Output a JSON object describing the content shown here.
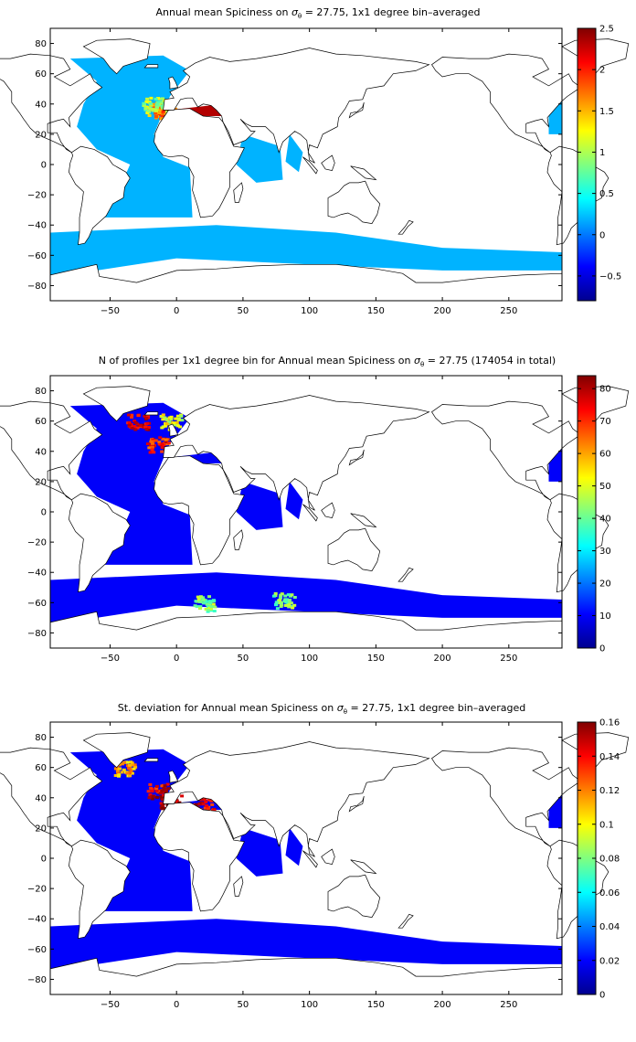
{
  "figure": {
    "panels": [
      {
        "id": "mean",
        "title_prefix": "Annual mean Spiciness on ",
        "title_suffix": " = 27.75, 1x1 degree bin–averaged",
        "xticks": [
          "−50",
          "0",
          "50",
          "100",
          "150",
          "200",
          "250"
        ],
        "yticks": [
          "80",
          "60",
          "40",
          "20",
          "0",
          "−20",
          "−40",
          "−60",
          "−80"
        ],
        "colorbar_ticks": [
          "2.5",
          "2",
          "1.5",
          "1",
          "0.5",
          "0",
          "−0.5"
        ]
      },
      {
        "id": "count",
        "title_prefix": "N of profiles per 1x1 degree bin for Annual mean Spiciness on ",
        "title_suffix": " = 27.75 (174054 in total)",
        "xticks": [
          "−50",
          "0",
          "50",
          "100",
          "150",
          "200",
          "250"
        ],
        "yticks": [
          "80",
          "60",
          "40",
          "20",
          "0",
          "−20",
          "−40",
          "−60",
          "−80"
        ],
        "colorbar_ticks": [
          "80",
          "70",
          "60",
          "50",
          "40",
          "30",
          "20",
          "10",
          "0"
        ]
      },
      {
        "id": "stdev",
        "title_prefix": "St. deviation for Annual mean Spiciness on ",
        "title_suffix": " = 27.75, 1x1 degree bin–averaged",
        "xticks": [
          "−50",
          "0",
          "50",
          "100",
          "150",
          "200",
          "250"
        ],
        "yticks": [
          "80",
          "60",
          "40",
          "20",
          "0",
          "−20",
          "−40",
          "−60",
          "−80"
        ],
        "colorbar_ticks": [
          "0.16",
          "0.14",
          "0.12",
          "0.1",
          "0.08",
          "0.06",
          "0.04",
          "0.02",
          "0"
        ]
      }
    ],
    "colormap": "jet"
  },
  "chart_data": [
    {
      "type": "heatmap",
      "title": "Annual mean Spiciness on σθ = 27.75, 1x1 degree bin–averaged",
      "xlim": [
        -95,
        290
      ],
      "ylim": [
        -90,
        90
      ],
      "xticks": [
        -50,
        0,
        50,
        100,
        150,
        200,
        250
      ],
      "yticks": [
        -80,
        -60,
        -40,
        -20,
        0,
        20,
        40,
        60,
        80
      ],
      "color_range": [
        -0.8,
        2.5
      ],
      "colorbar_ticks": [
        -0.5,
        0,
        0.5,
        1,
        1.5,
        2,
        2.5
      ]
    },
    {
      "type": "heatmap",
      "title": "N of profiles per 1x1 degree bin for Annual mean Spiciness on σθ = 27.75 (174054 in total)",
      "xlim": [
        -95,
        290
      ],
      "ylim": [
        -90,
        90
      ],
      "xticks": [
        -50,
        0,
        50,
        100,
        150,
        200,
        250
      ],
      "yticks": [
        -80,
        -60,
        -40,
        -20,
        0,
        20,
        40,
        60,
        80
      ],
      "color_range": [
        0,
        84
      ],
      "colorbar_ticks": [
        0,
        10,
        20,
        30,
        40,
        50,
        60,
        70,
        80
      ],
      "total_profiles": 174054
    },
    {
      "type": "heatmap",
      "title": "St. deviation for Annual mean Spiciness on σθ = 27.75, 1x1 degree bin–averaged",
      "xlim": [
        -95,
        290
      ],
      "ylim": [
        -90,
        90
      ],
      "xticks": [
        -50,
        0,
        50,
        100,
        150,
        200,
        250
      ],
      "yticks": [
        -80,
        -60,
        -40,
        -20,
        0,
        20,
        40,
        60,
        80
      ],
      "color_range": [
        0,
        0.16
      ],
      "colorbar_ticks": [
        0,
        0.02,
        0.04,
        0.06,
        0.08,
        0.1,
        0.12,
        0.14,
        0.16
      ]
    }
  ]
}
